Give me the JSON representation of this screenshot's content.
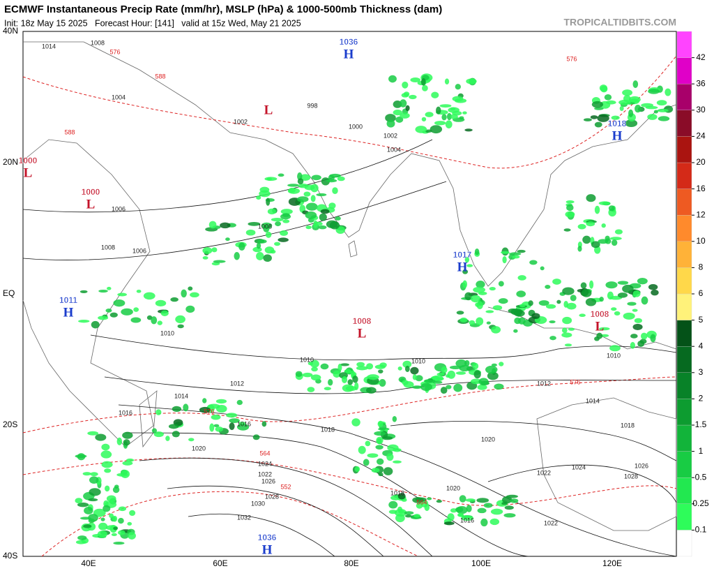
{
  "header": {
    "title": "ECMWF Instantaneous Precip Rate (mm/hr), MSLP (hPa) & 1000-500mb Thickness (dam)",
    "subtitle": "Init: 18z May 15 2025   Forecast Hour: [141]   valid at 15z Wed, May 21 2025",
    "site": "TROPICALTIDBITS.COM"
  },
  "map": {
    "lat_labels": [
      "40N",
      "20N",
      "EQ",
      "20S",
      "40S"
    ],
    "lon_labels": [
      "40E",
      "60E",
      "80E",
      "100E",
      "120E"
    ],
    "pressure_centers": [
      {
        "letter": "H",
        "value": 1036
      },
      {
        "letter": "L"
      },
      {
        "letter": "L",
        "value": 1000
      },
      {
        "letter": "L",
        "value": 1000
      },
      {
        "letter": "H",
        "value": 1017
      },
      {
        "letter": "H",
        "value": 1011
      },
      {
        "letter": "L",
        "value": 1008
      },
      {
        "letter": "L",
        "value": 1008
      },
      {
        "letter": "H",
        "value": 1018
      },
      {
        "letter": "H",
        "value": 1036
      }
    ],
    "isobar_labels": [
      1014,
      1008,
      1004,
      1002,
      998,
      1000,
      1002,
      1004,
      1006,
      1008,
      1008,
      1010,
      1010,
      1010,
      1012,
      1012,
      1014,
      1014,
      1016,
      1016,
      1018,
      1018,
      1020,
      1020,
      1022,
      1024,
      1026,
      1028,
      1030,
      1032,
      1022,
      1018,
      1020,
      1016,
      1024,
      1026,
      1028,
      1022,
      1010,
      1006
    ],
    "thickness_labels": [
      576,
      588,
      588,
      576,
      564,
      552,
      564,
      576,
      576
    ]
  },
  "colorbar": {
    "ticks": [
      0.1,
      0.25,
      0.5,
      1,
      1.5,
      2,
      3,
      4,
      5,
      6,
      8,
      10,
      12,
      16,
      20,
      24,
      30,
      36,
      42
    ],
    "colors": [
      "#ffffff",
      "#2efc5a",
      "#22e850",
      "#18cc44",
      "#12b43a",
      "#0d9c30",
      "#088228",
      "#066a20",
      "#045218",
      "#fff27a",
      "#ffd84a",
      "#ffb238",
      "#ff8a2c",
      "#ee5a22",
      "#d42a18",
      "#aa1410",
      "#8a0c28",
      "#a8006a",
      "#e000c8",
      "#ff44ff"
    ]
  }
}
